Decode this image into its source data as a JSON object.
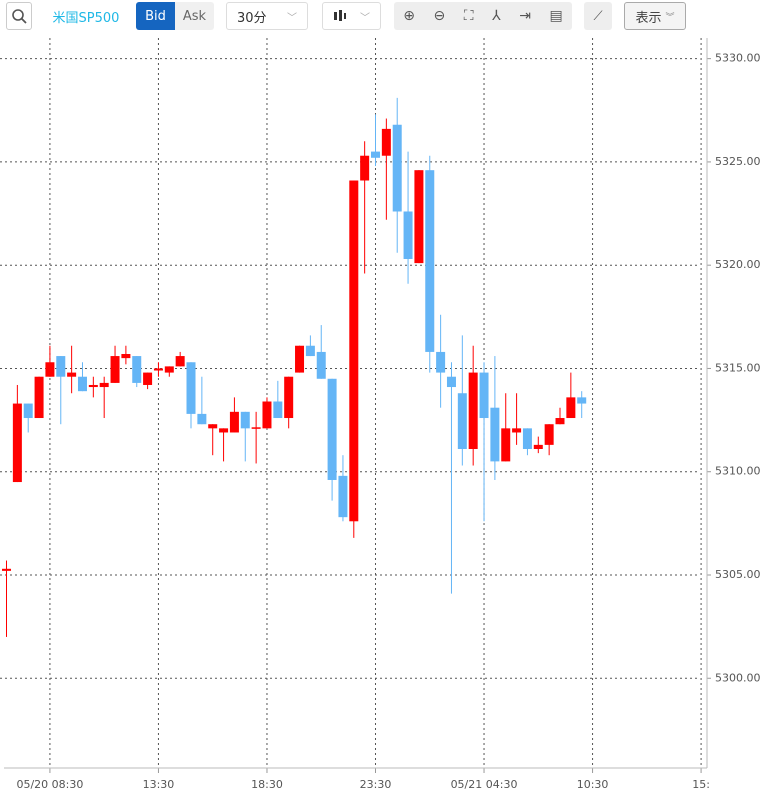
{
  "toolbar": {
    "symbol": "米国SP500",
    "bid": "Bid",
    "ask": "Ask",
    "interval": "30分",
    "display": "表示"
  },
  "chart_data": {
    "type": "candlestick",
    "up_color": "#ff0000",
    "down_color": "#64b5f6",
    "open": [
      5305.2,
      5309.5,
      5313.3,
      5312.6,
      5314.6,
      5315.6,
      5314.6,
      5314.6,
      5314.1,
      5314.1,
      5314.3,
      5315.5,
      5315.6,
      5314.2,
      5314.9,
      5314.8,
      5315.1,
      5315.3,
      5312.8,
      5312.1,
      5311.9,
      5311.9,
      5312.9,
      5312.1,
      5312.1,
      5313.4,
      5312.6,
      5314.8,
      5316.1,
      5315.8,
      5314.5,
      5309.8,
      5307.6,
      5324.1,
      5325.5,
      5325.3,
      5326.8,
      5322.6,
      5320.1,
      5324.6,
      5315.8,
      5314.6,
      5313.8,
      5311.1,
      5314.8,
      5313.1,
      5310.5,
      5311.9,
      5312.1,
      5311.1,
      5311.3,
      5312.3,
      5312.6,
      5313.6
    ],
    "high": [
      5305.7,
      5314.2,
      5313.3,
      5314.6,
      5316.1,
      5315.6,
      5316.1,
      5315.3,
      5314.6,
      5314.6,
      5316.1,
      5316.1,
      5315.6,
      5314.8,
      5315.3,
      5315.1,
      5315.8,
      5315.3,
      5314.6,
      5312.3,
      5312.1,
      5313.6,
      5312.9,
      5312.9,
      5313.6,
      5314.4,
      5314.6,
      5316.1,
      5316.6,
      5317.1,
      5314.5,
      5310.8,
      5324.1,
      5326.0,
      5327.3,
      5327.1,
      5328.1,
      5325.5,
      5324.6,
      5325.3,
      5317.6,
      5315.3,
      5316.6,
      5316.1,
      5315.3,
      5315.6,
      5313.8,
      5313.8,
      5312.1,
      5311.7,
      5312.3,
      5313.1,
      5314.8,
      5313.9
    ],
    "low": [
      5302.0,
      5309.5,
      5311.9,
      5312.6,
      5314.6,
      5312.3,
      5313.8,
      5313.9,
      5313.6,
      5312.6,
      5314.3,
      5315.2,
      5314.1,
      5314.0,
      5314.6,
      5314.6,
      5315.1,
      5312.1,
      5312.3,
      5310.8,
      5310.5,
      5311.9,
      5310.5,
      5310.4,
      5312.1,
      5312.6,
      5312.1,
      5314.8,
      5315.6,
      5314.5,
      5308.6,
      5307.6,
      5306.8,
      5319.6,
      5324.8,
      5322.2,
      5320.6,
      5319.1,
      5320.1,
      5314.8,
      5313.1,
      5304.1,
      5310.3,
      5310.3,
      5307.6,
      5309.6,
      5310.5,
      5311.3,
      5310.8,
      5310.9,
      5310.8,
      5312.3,
      5312.6,
      5312.6
    ],
    "close": [
      5305.3,
      5313.3,
      5312.6,
      5314.6,
      5315.3,
      5314.6,
      5314.8,
      5313.9,
      5314.2,
      5314.3,
      5315.6,
      5315.7,
      5314.3,
      5314.8,
      5315.0,
      5315.1,
      5315.6,
      5312.8,
      5312.3,
      5312.3,
      5312.1,
      5312.9,
      5312.1,
      5312.15,
      5313.4,
      5312.6,
      5314.6,
      5316.1,
      5315.6,
      5314.5,
      5309.6,
      5307.8,
      5324.1,
      5325.3,
      5325.2,
      5326.6,
      5322.6,
      5320.3,
      5324.6,
      5315.8,
      5314.8,
      5314.1,
      5311.1,
      5314.8,
      5312.6,
      5310.5,
      5312.1,
      5312.1,
      5311.1,
      5311.3,
      5312.3,
      5312.6,
      5313.6,
      5313.3
    ],
    "xlim": [
      -0.6,
      63.9
    ],
    "xticks": [
      {
        "value": 4,
        "label": "05/20 08:30"
      },
      {
        "value": 14,
        "label": "13:30"
      },
      {
        "value": 24,
        "label": "18:30"
      },
      {
        "value": 34,
        "label": "23:30"
      },
      {
        "value": 44,
        "label": "05/21 04:30"
      },
      {
        "value": 54,
        "label": "10:30"
      },
      {
        "value": 64,
        "label": "15:"
      }
    ],
    "ylim": [
      5295.8,
      5331.0
    ],
    "yticks": [
      {
        "value": 5300,
        "label": "5300.00"
      },
      {
        "value": 5305,
        "label": "5305.00"
      },
      {
        "value": 5310,
        "label": "5310.00"
      },
      {
        "value": 5315,
        "label": "5315.00"
      },
      {
        "value": 5320,
        "label": "5320.00"
      },
      {
        "value": 5325,
        "label": "5325.00"
      },
      {
        "value": 5330,
        "label": "5330.00"
      }
    ],
    "grid": true
  }
}
